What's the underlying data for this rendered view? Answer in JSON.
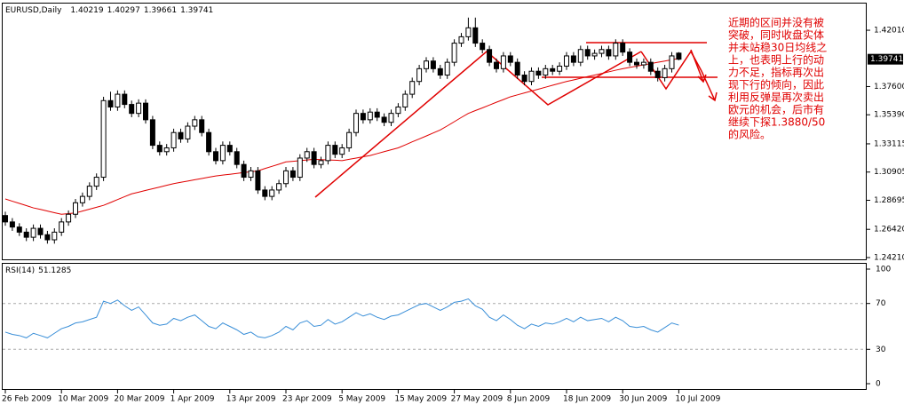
{
  "chart_data": {
    "type": "candlestick",
    "title": "EURUSD,Daily",
    "categories": [
      "26 Feb 2009",
      null,
      null,
      null,
      null,
      null,
      null,
      null,
      "10 Mar 2009",
      null,
      null,
      null,
      null,
      null,
      null,
      null,
      "20 Mar 2009",
      null,
      null,
      null,
      null,
      null,
      null,
      null,
      "1 Apr 2009",
      null,
      null,
      null,
      null,
      null,
      null,
      null,
      "13 Apr 2009",
      null,
      null,
      null,
      null,
      null,
      null,
      null,
      "23 Apr 2009",
      null,
      null,
      null,
      null,
      null,
      null,
      null,
      "5 May 2009",
      null,
      null,
      null,
      null,
      null,
      null,
      null,
      "15 May 2009",
      null,
      null,
      null,
      null,
      null,
      null,
      null,
      "27 May 2009",
      null,
      null,
      null,
      null,
      null,
      null,
      null,
      "8 Jun 2009",
      null,
      null,
      null,
      null,
      null,
      null,
      null,
      "18 Jun 2009",
      null,
      null,
      null,
      null,
      null,
      null,
      null,
      "30 Jun 2009",
      null,
      null,
      null,
      null,
      null,
      null,
      null,
      "10 Jul 2009"
    ],
    "candles": [
      [
        1.275,
        1.278,
        1.267,
        1.27
      ],
      [
        1.27,
        1.273,
        1.263,
        1.266
      ],
      [
        1.266,
        1.269,
        1.259,
        1.262
      ],
      [
        1.262,
        1.265,
        1.255,
        1.258
      ],
      [
        1.258,
        1.268,
        1.255,
        1.265
      ],
      [
        1.265,
        1.268,
        1.257,
        1.26
      ],
      [
        1.26,
        1.263,
        1.253,
        1.256
      ],
      [
        1.256,
        1.265,
        1.253,
        1.262
      ],
      [
        1.262,
        1.273,
        1.259,
        1.27
      ],
      [
        1.27,
        1.279,
        1.267,
        1.276
      ],
      [
        1.276,
        1.288,
        1.273,
        1.285
      ],
      [
        1.285,
        1.293,
        1.282,
        1.29
      ],
      [
        1.29,
        1.301,
        1.287,
        1.298
      ],
      [
        1.298,
        1.308,
        1.295,
        1.305
      ],
      [
        1.305,
        1.368,
        1.302,
        1.365
      ],
      [
        1.365,
        1.372,
        1.357,
        1.36
      ],
      [
        1.36,
        1.373,
        1.357,
        1.37
      ],
      [
        1.37,
        1.373,
        1.359,
        1.362
      ],
      [
        1.362,
        1.365,
        1.352,
        1.355
      ],
      [
        1.355,
        1.366,
        1.352,
        1.363
      ],
      [
        1.363,
        1.366,
        1.347,
        1.35
      ],
      [
        1.35,
        1.353,
        1.327,
        1.33
      ],
      [
        1.33,
        1.333,
        1.322,
        1.325
      ],
      [
        1.325,
        1.331,
        1.322,
        1.328
      ],
      [
        1.328,
        1.343,
        1.325,
        1.34
      ],
      [
        1.34,
        1.343,
        1.332,
        1.335
      ],
      [
        1.335,
        1.348,
        1.332,
        1.345
      ],
      [
        1.345,
        1.353,
        1.342,
        1.35
      ],
      [
        1.35,
        1.353,
        1.337,
        1.34
      ],
      [
        1.34,
        1.343,
        1.322,
        1.325
      ],
      [
        1.325,
        1.328,
        1.315,
        1.318
      ],
      [
        1.318,
        1.333,
        1.315,
        1.33
      ],
      [
        1.33,
        1.333,
        1.322,
        1.325
      ],
      [
        1.325,
        1.328,
        1.312,
        1.315
      ],
      [
        1.315,
        1.318,
        1.302,
        1.305
      ],
      [
        1.305,
        1.313,
        1.302,
        1.31
      ],
      [
        1.31,
        1.313,
        1.292,
        1.295
      ],
      [
        1.295,
        1.298,
        1.287,
        1.29
      ],
      [
        1.29,
        1.298,
        1.287,
        1.295
      ],
      [
        1.295,
        1.303,
        1.292,
        1.3
      ],
      [
        1.3,
        1.313,
        1.297,
        1.31
      ],
      [
        1.31,
        1.313,
        1.302,
        1.305
      ],
      [
        1.305,
        1.323,
        1.302,
        1.32
      ],
      [
        1.32,
        1.328,
        1.317,
        1.325
      ],
      [
        1.325,
        1.328,
        1.312,
        1.315
      ],
      [
        1.315,
        1.321,
        1.312,
        1.318
      ],
      [
        1.318,
        1.333,
        1.315,
        1.33
      ],
      [
        1.33,
        1.333,
        1.32,
        1.323
      ],
      [
        1.323,
        1.331,
        1.32,
        1.328
      ],
      [
        1.328,
        1.343,
        1.325,
        1.34
      ],
      [
        1.34,
        1.358,
        1.337,
        1.355
      ],
      [
        1.355,
        1.358,
        1.347,
        1.35
      ],
      [
        1.35,
        1.359,
        1.347,
        1.356
      ],
      [
        1.356,
        1.359,
        1.349,
        1.352
      ],
      [
        1.352,
        1.355,
        1.345,
        1.348
      ],
      [
        1.348,
        1.358,
        1.345,
        1.355
      ],
      [
        1.355,
        1.363,
        1.352,
        1.36
      ],
      [
        1.36,
        1.373,
        1.357,
        1.37
      ],
      [
        1.37,
        1.383,
        1.367,
        1.38
      ],
      [
        1.38,
        1.393,
        1.377,
        1.39
      ],
      [
        1.39,
        1.399,
        1.387,
        1.396
      ],
      [
        1.396,
        1.399,
        1.387,
        1.39
      ],
      [
        1.39,
        1.393,
        1.382,
        1.385
      ],
      [
        1.385,
        1.398,
        1.382,
        1.395
      ],
      [
        1.395,
        1.413,
        1.392,
        1.41
      ],
      [
        1.41,
        1.418,
        1.407,
        1.415
      ],
      [
        1.415,
        1.43,
        1.412,
        1.422
      ],
      [
        1.422,
        1.43,
        1.407,
        1.41
      ],
      [
        1.41,
        1.413,
        1.402,
        1.405
      ],
      [
        1.405,
        1.408,
        1.392,
        1.395
      ],
      [
        1.395,
        1.398,
        1.387,
        1.39
      ],
      [
        1.39,
        1.403,
        1.387,
        1.4
      ],
      [
        1.4,
        1.403,
        1.392,
        1.395
      ],
      [
        1.395,
        1.398,
        1.382,
        1.385
      ],
      [
        1.385,
        1.388,
        1.377,
        1.38
      ],
      [
        1.38,
        1.391,
        1.377,
        1.388
      ],
      [
        1.388,
        1.391,
        1.382,
        1.385
      ],
      [
        1.385,
        1.393,
        1.382,
        1.39
      ],
      [
        1.39,
        1.393,
        1.385,
        1.388
      ],
      [
        1.388,
        1.395,
        1.385,
        1.392
      ],
      [
        1.392,
        1.403,
        1.389,
        1.4
      ],
      [
        1.4,
        1.403,
        1.392,
        1.395
      ],
      [
        1.395,
        1.408,
        1.392,
        1.405
      ],
      [
        1.405,
        1.408,
        1.397,
        1.4
      ],
      [
        1.4,
        1.405,
        1.397,
        1.402
      ],
      [
        1.402,
        1.408,
        1.399,
        1.405
      ],
      [
        1.405,
        1.408,
        1.397,
        1.4
      ],
      [
        1.4,
        1.413,
        1.397,
        1.41
      ],
      [
        1.41,
        1.413,
        1.4,
        1.403
      ],
      [
        1.403,
        1.406,
        1.392,
        1.395
      ],
      [
        1.395,
        1.398,
        1.39,
        1.393
      ],
      [
        1.393,
        1.398,
        1.39,
        1.395
      ],
      [
        1.395,
        1.398,
        1.385,
        1.388
      ],
      [
        1.388,
        1.391,
        1.38,
        1.383
      ],
      [
        1.383,
        1.393,
        1.38,
        1.39
      ],
      [
        1.39,
        1.403,
        1.387,
        1.4
      ],
      [
        1.40219,
        1.40297,
        1.39661,
        1.39741
      ]
    ],
    "ma": {
      "color": "#e00000",
      "values": [
        1.288,
        1.2862,
        1.2845,
        1.2828,
        1.281,
        1.2798,
        1.2785,
        1.2772,
        1.276,
        1.2765,
        1.277,
        1.2785,
        1.28,
        1.2815,
        1.283,
        1.2852,
        1.2875,
        1.2898,
        1.292,
        1.2933,
        1.2947,
        1.296,
        1.2973,
        1.2987,
        1.3,
        1.301,
        1.302,
        1.303,
        1.304,
        1.305,
        1.306,
        1.3067,
        1.3073,
        1.308,
        1.3087,
        1.3093,
        1.31,
        1.3118,
        1.3135,
        1.3152,
        1.317,
        1.3175,
        1.318,
        1.3185,
        1.319,
        1.3188,
        1.3185,
        1.3183,
        1.318,
        1.319,
        1.32,
        1.321,
        1.322,
        1.3235,
        1.325,
        1.3265,
        1.328,
        1.3303,
        1.3327,
        1.335,
        1.3373,
        1.3397,
        1.342,
        1.3452,
        1.3485,
        1.3518,
        1.355,
        1.3572,
        1.3593,
        1.3615,
        1.3637,
        1.3658,
        1.368,
        1.3695,
        1.371,
        1.3725,
        1.374,
        1.3755,
        1.377,
        1.3785,
        1.38,
        1.3812,
        1.3825,
        1.3838,
        1.385,
        1.3862,
        1.3875,
        1.3888,
        1.39,
        1.391,
        1.392,
        1.393,
        1.394,
        1.395,
        1.396,
        1.397,
        1.398
      ]
    },
    "ylim": [
      1.2407,
      1.441
    ],
    "yticks": [
      {
        "value": 1.4201,
        "label": "1.42010"
      },
      {
        "value": 1.376,
        "label": "1.37600"
      },
      {
        "value": 1.3539,
        "label": "1.35390"
      },
      1.33115,
      1.30905,
      1.28695,
      {
        "value": 1.2642,
        "label": "1.26420"
      },
      {
        "value": 1.2421,
        "label": "1.24210"
      }
    ],
    "rsi": {
      "label": "RSI(14)",
      "color": "#3a8fd8",
      "ylim": [
        0,
        100
      ],
      "yticks": [
        100,
        70,
        30,
        0
      ],
      "values": [
        45,
        43,
        42,
        40,
        44,
        42,
        40,
        44,
        48,
        50,
        53,
        54,
        56,
        58,
        72,
        70,
        73,
        68,
        64,
        67,
        60,
        53,
        51,
        52,
        57,
        55,
        58,
        60,
        55,
        50,
        48,
        53,
        50,
        47,
        43,
        45,
        41,
        40,
        42,
        45,
        50,
        47,
        53,
        55,
        50,
        51,
        56,
        52,
        54,
        58,
        62,
        59,
        61,
        58,
        56,
        59,
        60,
        63,
        66,
        69,
        70,
        67,
        64,
        67,
        71,
        72,
        74,
        68,
        65,
        58,
        55,
        60,
        56,
        51,
        48,
        52,
        50,
        53,
        52,
        54,
        57,
        54,
        58,
        55,
        56,
        57,
        54,
        58,
        55,
        50,
        49,
        50,
        47,
        45,
        49,
        53,
        51.1285
      ]
    },
    "annotation": {
      "color": "#e00000",
      "lines": [
        "近期的区间并没有被",
        "突破，同时收盘实体",
        "并未站稳30日均线之",
        "上，也表明上行的动",
        "力不足，指标再次出",
        "现下行的倾向，因此",
        "利用反弹是再次卖出",
        "欧元的机会，后市有",
        "继续下探1.3880/50",
        "的风险。"
      ]
    }
  }
}
